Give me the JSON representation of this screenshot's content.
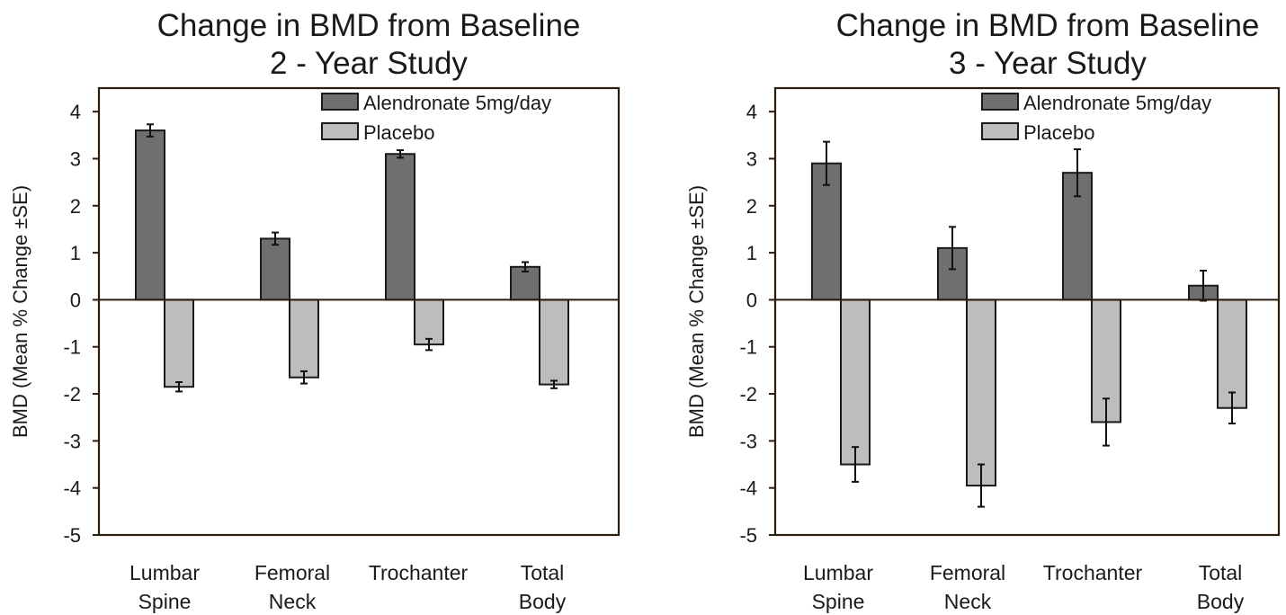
{
  "colors": {
    "alendronate": "#6f6f6f",
    "placebo": "#bdbdbd",
    "axis": "#2b1d0e",
    "bar_stroke": "#1a1a1a"
  },
  "chart_data": [
    {
      "type": "bar",
      "title": [
        "Change in BMD from Baseline",
        "2 - Year Study"
      ],
      "ylabel": "BMD (Mean % Change ±SE)",
      "xlabel": "",
      "ylim": [
        -5,
        4.5
      ],
      "yticks": [
        4,
        3,
        2,
        1,
        0,
        -1,
        -2,
        -3,
        -4,
        -5
      ],
      "ytick_labels": [
        "4",
        "3",
        "2",
        "1",
        "0",
        "-1",
        "-2",
        "-3",
        "-4",
        "-5"
      ],
      "categories": [
        [
          "Lumbar",
          "Spine"
        ],
        [
          "Femoral",
          "Neck"
        ],
        [
          "Trochanter"
        ],
        [
          "Total",
          "Body"
        ]
      ],
      "legend": "top-right",
      "grid": false,
      "series": [
        {
          "name": "Alendronate 5mg/day",
          "values": [
            3.6,
            1.3,
            3.1,
            0.7
          ],
          "se": [
            0.13,
            0.13,
            0.08,
            0.1
          ]
        },
        {
          "name": "Placebo",
          "values": [
            -1.85,
            -1.65,
            -0.95,
            -1.8
          ],
          "se": [
            0.1,
            0.13,
            0.12,
            0.08
          ]
        }
      ]
    },
    {
      "type": "bar",
      "title": [
        "Change in BMD from Baseline",
        "3 - Year Study"
      ],
      "ylabel": "BMD (Mean % Change ±SE)",
      "xlabel": "",
      "ylim": [
        -5,
        4.5
      ],
      "yticks": [
        4,
        3,
        2,
        1,
        0,
        -1,
        -2,
        -3,
        -4,
        -5
      ],
      "ytick_labels": [
        "4",
        "3",
        "2",
        "1",
        "0",
        "-1",
        "-2",
        "-3",
        "-4",
        "-5"
      ],
      "categories": [
        [
          "Lumbar",
          "Spine"
        ],
        [
          "Femoral",
          "Neck"
        ],
        [
          "Trochanter"
        ],
        [
          "Total",
          "Body"
        ]
      ],
      "legend": "top-right",
      "grid": false,
      "series": [
        {
          "name": "Alendronate 5mg/day",
          "values": [
            2.9,
            1.1,
            2.7,
            0.3
          ],
          "se": [
            0.46,
            0.45,
            0.5,
            0.32
          ]
        },
        {
          "name": "Placebo",
          "values": [
            -3.5,
            -3.95,
            -2.6,
            -2.3
          ],
          "se": [
            0.37,
            0.45,
            0.5,
            0.33
          ]
        }
      ]
    }
  ]
}
